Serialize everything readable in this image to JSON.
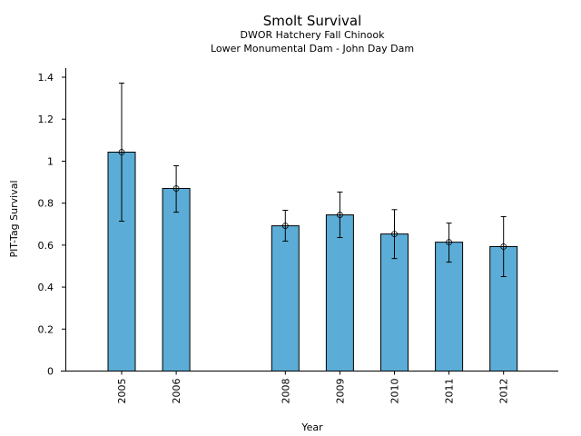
{
  "chart_data": {
    "type": "bar",
    "title": "Smolt Survival",
    "subtitle_lines": [
      "DWOR Hatchery Fall Chinook",
      "Lower Monumental Dam - John Day Dam"
    ],
    "xlabel": "Year",
    "ylabel": "PIT-Tag Survival",
    "x_range": [
      2003.9,
      2013
    ],
    "ylim": [
      0,
      1.44
    ],
    "yticks": [
      0,
      0.2,
      0.4,
      0.6,
      0.8,
      1,
      1.2,
      1.4
    ],
    "ytick_labels": [
      "0",
      "0.2",
      "0.4",
      "0.6",
      "0.8",
      "1",
      "1.2",
      "1.4"
    ],
    "categories": [
      "2005",
      "2006",
      "2008",
      "2009",
      "2010",
      "2011",
      "2012"
    ],
    "x": [
      2005,
      2006,
      2008,
      2009,
      2010,
      2011,
      2012
    ],
    "values": [
      1.043,
      0.87,
      0.692,
      0.744,
      0.653,
      0.614,
      0.593
    ],
    "error_upper": [
      1.372,
      0.978,
      0.766,
      0.853,
      0.769,
      0.705,
      0.736
    ],
    "error_lower": [
      0.714,
      0.757,
      0.619,
      0.636,
      0.536,
      0.519,
      0.45
    ],
    "bar_color": "#5BACD6",
    "grid": false,
    "legend": "none"
  }
}
